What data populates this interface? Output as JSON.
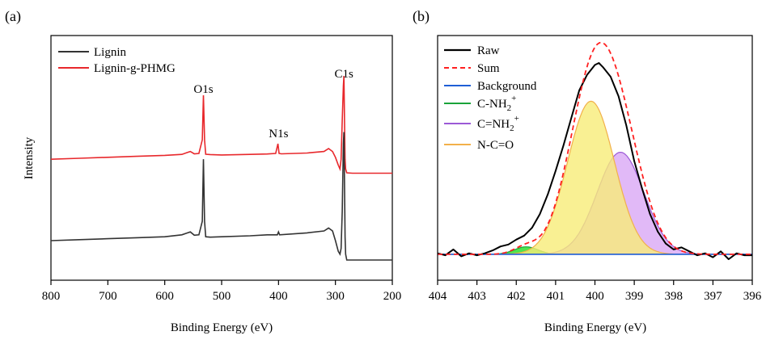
{
  "colors": {
    "raw": "#000000",
    "sum": "#ff2020",
    "background": "#1f5fd6",
    "c_nh2": "#1aa33a",
    "c_nh2_fill": "#22dd22",
    "cnh2": "#9b59d6",
    "cnh2_fill": "#d9a8f5",
    "nco": "#f2b04a",
    "nco_fill": "#f8ec78",
    "lignin": "#333333",
    "lignin_g": "#e8282c"
  },
  "chart_data": [
    {
      "type": "line",
      "panel_label": "(a)",
      "xlabel": "Binding Energy (eV)",
      "ylabel": "Intensity",
      "xlim": [
        800,
        200
      ],
      "x_reversed": true,
      "xticks": [
        800,
        700,
        600,
        500,
        400,
        300,
        200
      ],
      "grid": false,
      "legend_position": "top-left",
      "series": [
        {
          "name": "Lignin-g-PHMG",
          "color_key": "lignin_g",
          "x": [
            800,
            750,
            700,
            650,
            600,
            570,
            560,
            555,
            548,
            540,
            534,
            532,
            530,
            528,
            520,
            500,
            450,
            420,
            405,
            401,
            399,
            395,
            350,
            320,
            312,
            305,
            300,
            295,
            292,
            290,
            288,
            286,
            285,
            284,
            283,
            282,
            280,
            270,
            240,
            200
          ],
          "y": [
            0.52,
            0.525,
            0.53,
            0.535,
            0.54,
            0.545,
            0.555,
            0.56,
            0.548,
            0.55,
            0.62,
            0.85,
            0.62,
            0.546,
            0.544,
            0.542,
            0.545,
            0.547,
            0.55,
            0.6,
            0.55,
            0.548,
            0.552,
            0.56,
            0.575,
            0.56,
            0.53,
            0.49,
            0.47,
            0.52,
            0.72,
            0.9,
            0.95,
            0.72,
            0.52,
            0.47,
            0.45,
            0.448,
            0.448,
            0.448
          ]
        },
        {
          "name": "Lignin",
          "color_key": "lignin",
          "x": [
            800,
            750,
            700,
            650,
            600,
            570,
            560,
            555,
            548,
            540,
            534,
            532,
            530,
            528,
            520,
            500,
            450,
            420,
            402,
            400,
            398,
            350,
            320,
            312,
            305,
            300,
            295,
            292,
            290,
            288,
            286,
            285,
            284,
            283,
            282,
            280,
            270,
            240,
            200
          ],
          "y": [
            0.1,
            0.105,
            0.11,
            0.115,
            0.12,
            0.13,
            0.14,
            0.145,
            0.128,
            0.13,
            0.2,
            0.52,
            0.2,
            0.12,
            0.118,
            0.12,
            0.125,
            0.13,
            0.13,
            0.145,
            0.13,
            0.14,
            0.15,
            0.165,
            0.15,
            0.1,
            0.045,
            0.03,
            0.06,
            0.25,
            0.6,
            0.66,
            0.4,
            0.12,
            0.03,
            0.0,
            0.0,
            0.0,
            0.0
          ]
        }
      ],
      "annotations": [
        {
          "text": "O1s",
          "x": 532
        },
        {
          "text": "N1s",
          "x": 400
        },
        {
          "text": "C1s",
          "x": 285
        }
      ]
    },
    {
      "type": "area",
      "panel_label": "(b)",
      "xlabel": "Binding Energy (eV)",
      "ylabel": "",
      "xlim": [
        404,
        396
      ],
      "x_reversed": true,
      "xticks": [
        404,
        403,
        402,
        401,
        400,
        399,
        398,
        397,
        396
      ],
      "grid": false,
      "legend_position": "top-left",
      "baseline": 0.025,
      "legend": [
        "Raw",
        "Sum",
        "Background",
        "C-NH2+",
        "C=NH2+",
        "N-C=O"
      ],
      "peaks": [
        {
          "name": "C-NH2+",
          "center": 401.75,
          "amplitude": 0.038,
          "fwhm": 0.7,
          "color_key": "c_nh2",
          "fill_key": "c_nh2_fill"
        },
        {
          "name": "C=NH2+",
          "center": 399.35,
          "amplitude": 0.52,
          "fwhm": 1.4,
          "color_key": "cnh2",
          "fill_key": "cnh2_fill"
        },
        {
          "name": "N-C=O",
          "center": 400.1,
          "amplitude": 0.78,
          "fwhm": 1.4,
          "color_key": "nco",
          "fill_key": "nco_fill"
        }
      ],
      "raw": {
        "x": [
          404,
          403.8,
          403.6,
          403.4,
          403.2,
          403.0,
          402.8,
          402.6,
          402.4,
          402.2,
          402.0,
          401.8,
          401.6,
          401.4,
          401.2,
          401.0,
          400.8,
          400.6,
          400.4,
          400.2,
          400.0,
          399.9,
          399.8,
          399.6,
          399.4,
          399.2,
          399.0,
          398.8,
          398.6,
          398.4,
          398.2,
          398.0,
          397.8,
          397.6,
          397.4,
          397.2,
          397.0,
          396.8,
          396.6,
          396.4,
          396.2,
          396.0
        ],
        "y": [
          0.03,
          0.02,
          0.05,
          0.015,
          0.03,
          0.02,
          0.03,
          0.045,
          0.065,
          0.075,
          0.1,
          0.12,
          0.16,
          0.23,
          0.33,
          0.45,
          0.58,
          0.72,
          0.86,
          0.94,
          0.99,
          1.0,
          0.98,
          0.93,
          0.83,
          0.68,
          0.5,
          0.36,
          0.23,
          0.14,
          0.08,
          0.05,
          0.06,
          0.04,
          0.02,
          0.03,
          0.01,
          0.04,
          0.0,
          0.03,
          0.02,
          0.02
        ]
      }
    }
  ]
}
